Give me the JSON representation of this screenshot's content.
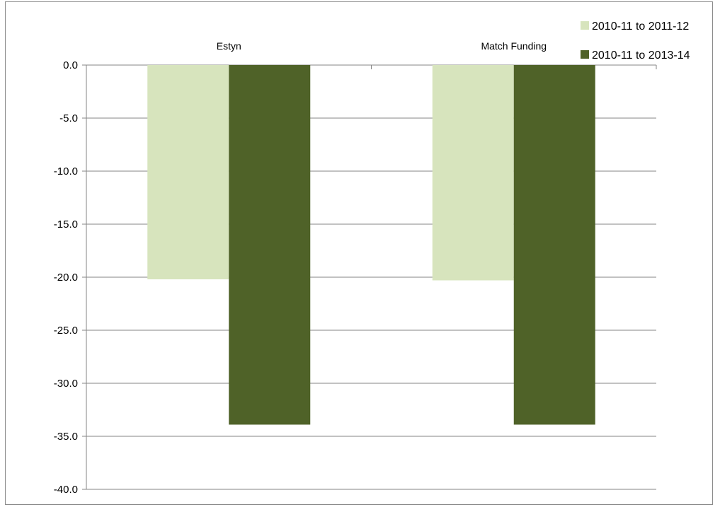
{
  "chart_data": {
    "type": "bar",
    "categories": [
      "Estyn",
      "Match Funding"
    ],
    "series": [
      {
        "name": "2010-11 to 2011-12",
        "values": [
          -20.2,
          -20.3
        ],
        "color": "#d7e4bd"
      },
      {
        "name": "2010-11 to 2013-14",
        "values": [
          -33.9,
          -33.9
        ],
        "color": "#4f6228"
      }
    ],
    "title": "",
    "xlabel": "",
    "ylabel": "",
    "ylim": [
      -40,
      0
    ],
    "yticks": [
      0,
      -5,
      -10,
      -15,
      -20,
      -25,
      -30,
      -35,
      -40
    ],
    "ytick_labels": [
      "0.0",
      "-5.0",
      "-10.0",
      "-15.0",
      "-20.0",
      "-25.0",
      "-30.0",
      "-35.0",
      "-40.0"
    ],
    "grid": "horizontal",
    "category_labels_position": "top",
    "legend": "top-right",
    "axis_color": "#868686",
    "grid_color": "#868686"
  }
}
